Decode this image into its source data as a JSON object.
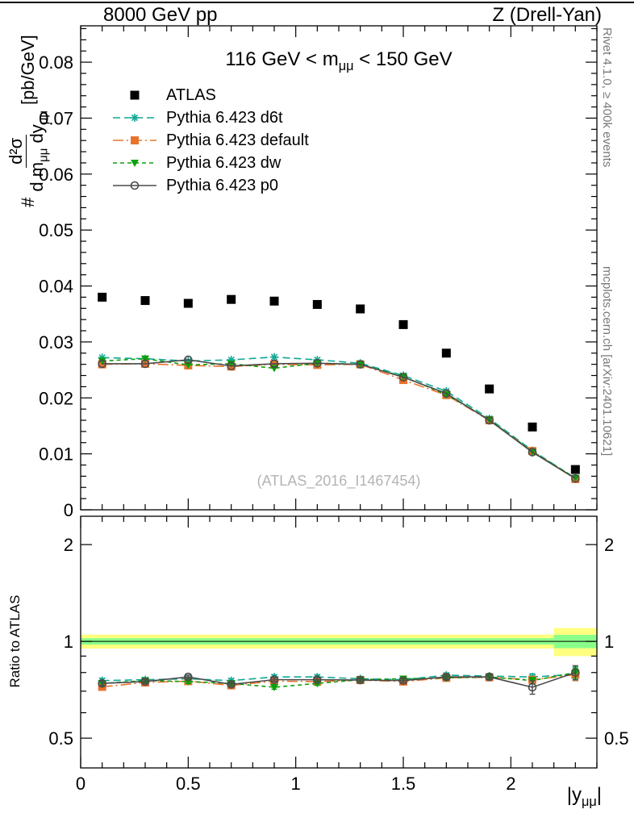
{
  "header": {
    "left": "8000 GeV pp",
    "right": "Z (Drell-Yan)"
  },
  "title": {
    "pre": "116 GeV < m",
    "sub": "μμ",
    "post": " < 150 GeV"
  },
  "watermark": "(ATLAS_2016_I1467454)",
  "side_notes": {
    "top": "Rivet 4.1.0, ≥ 400k events",
    "bottom": "mcplots.cern.ch [arXiv:2401.10621]"
  },
  "ylabel_main": {
    "prefix": "#",
    "numerator": "d²σ",
    "den_pre": "d m",
    "den_sub1": "μμ",
    "den_mid": " dy",
    "den_sub2": "μμ",
    "units": "[pb/GeV]"
  },
  "ylabel_ratio": "Ratio to ATLAS",
  "xlabel": {
    "pre": "|y",
    "sub": "μμ",
    "post": "|"
  },
  "chart_data": {
    "type": "line",
    "title": "116 GeV < m_mumu < 150 GeV",
    "xlabel": "|y_mumu|",
    "ylabel": "# d2sigma / d m_mumu dy_mumu [pb/GeV]",
    "ylabel_ratio": "Ratio to ATLAS",
    "x": [
      0.1,
      0.3,
      0.5,
      0.7,
      0.9,
      1.1,
      1.3,
      1.5,
      1.7,
      1.9,
      2.1,
      2.3
    ],
    "xlim": [
      0,
      2.4
    ],
    "x_major_ticks": [
      0,
      0.5,
      1,
      1.5,
      2
    ],
    "x_minor_step": 0.1,
    "main_panel": {
      "ylim": [
        0,
        0.0865
      ],
      "y_major_step": 0.01,
      "y_minor_step": 0.002
    },
    "ratio_panel": {
      "yscale": "log",
      "ylim": [
        0.404,
        2.45
      ],
      "y_ticks": [
        0.5,
        1,
        2
      ],
      "y_minor_ticks": [
        0.6,
        0.7,
        0.8,
        0.9
      ],
      "reference_line": 1,
      "bands": [
        {
          "name": "atlas-uncertainty-band-outer",
          "color": "#ffff80",
          "segments": [
            {
              "x0": 0,
              "x1": 2.2,
              "lo": 0.95,
              "hi": 1.05
            },
            {
              "x0": 2.2,
              "x1": 2.4,
              "lo": 0.9,
              "hi": 1.1
            }
          ]
        },
        {
          "name": "atlas-uncertainty-band-inner",
          "color": "#8aff8a",
          "segments": [
            {
              "x0": 0,
              "x1": 2.2,
              "lo": 0.977,
              "hi": 1.023
            },
            {
              "x0": 2.2,
              "x1": 2.4,
              "lo": 0.952,
              "hi": 1.048
            }
          ]
        }
      ]
    },
    "series": [
      {
        "name": "ATLAS",
        "color": "#000000",
        "marker": "square",
        "line": "none",
        "main": [
          0.038,
          0.0374,
          0.0369,
          0.0376,
          0.0373,
          0.0367,
          0.0359,
          0.0331,
          0.028,
          0.0216,
          0.0148,
          0.0072
        ],
        "ratio": null
      },
      {
        "name": "Pythia 6.423 d6t",
        "color": "#10a894",
        "marker": "asterisk",
        "line": "dashed",
        "main": [
          0.0272,
          0.027,
          0.0266,
          0.0268,
          0.0273,
          0.0268,
          0.0262,
          0.024,
          0.0212,
          0.0163,
          0.0106,
          0.0056
        ],
        "ratio": [
          0.755,
          0.76,
          0.765,
          0.755,
          0.775,
          0.775,
          0.765,
          0.76,
          0.785,
          0.78,
          0.775,
          0.79
        ],
        "ratio_err": [
          0.012,
          0.01,
          0.01,
          0.01,
          0.012,
          0.012,
          0.01,
          0.01,
          0.012,
          0.012,
          0.018,
          0.035
        ]
      },
      {
        "name": "Pythia 6.423 default",
        "color": "#e8732c",
        "marker": "square",
        "line": "dashdot",
        "main": [
          0.026,
          0.0261,
          0.0258,
          0.0256,
          0.026,
          0.0259,
          0.026,
          0.0232,
          0.0205,
          0.016,
          0.0105,
          0.0055
        ],
        "ratio": [
          0.722,
          0.745,
          0.752,
          0.73,
          0.752,
          0.75,
          0.758,
          0.75,
          0.77,
          0.773,
          0.76,
          0.788
        ],
        "ratio_err": [
          0.012,
          0.01,
          0.01,
          0.01,
          0.01,
          0.01,
          0.01,
          0.01,
          0.012,
          0.012,
          0.018,
          0.032
        ]
      },
      {
        "name": "Pythia 6.423 dw",
        "color": "#0aa00a",
        "marker": "triangle-down",
        "line": "dashed-short",
        "main": [
          0.0266,
          0.027,
          0.0259,
          0.0261,
          0.0253,
          0.0262,
          0.026,
          0.0238,
          0.0206,
          0.0161,
          0.0104,
          0.0057
        ],
        "ratio": [
          0.74,
          0.755,
          0.75,
          0.74,
          0.72,
          0.74,
          0.76,
          0.765,
          0.77,
          0.775,
          0.755,
          0.8
        ],
        "ratio_err": [
          0.012,
          0.01,
          0.01,
          0.01,
          0.01,
          0.01,
          0.01,
          0.01,
          0.012,
          0.012,
          0.018,
          0.032
        ]
      },
      {
        "name": "Pythia 6.423 p0",
        "color": "#4a4a4a",
        "marker": "circle-open",
        "line": "solid",
        "main": [
          0.0261,
          0.0261,
          0.0268,
          0.0257,
          0.0261,
          0.0262,
          0.026,
          0.0237,
          0.0208,
          0.016,
          0.0103,
          0.0056
        ],
        "ratio": [
          0.74,
          0.75,
          0.775,
          0.735,
          0.76,
          0.76,
          0.758,
          0.755,
          0.775,
          0.775,
          0.72,
          0.8
        ],
        "ratio_err": [
          0.012,
          0.01,
          0.01,
          0.01,
          0.01,
          0.01,
          0.01,
          0.01,
          0.012,
          0.012,
          0.035,
          0.04
        ]
      }
    ]
  }
}
